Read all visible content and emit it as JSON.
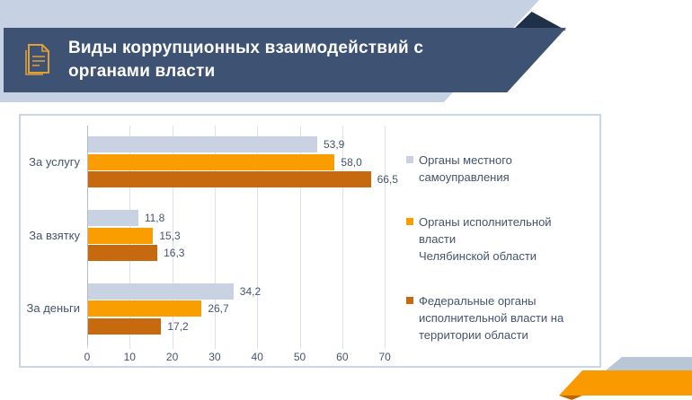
{
  "header": {
    "title_line1": "Виды коррупционных взаимодействий с",
    "title_line2": "органами власти"
  },
  "colors": {
    "banner": "#3e5273",
    "banner_fold": "#1e3149",
    "top_band": "#c6d2e4",
    "panel_border": "#c9d6ea",
    "icon_orange": "#dfa03c",
    "gridline": "#dce2ee",
    "axis_text": "#44546a",
    "bottom_band_gray": "#b9c6d8",
    "bottom_band_orange": "#f99b00",
    "bottom_band_tip": "#c06400"
  },
  "chart_data": {
    "type": "bar",
    "orientation": "horizontal",
    "categories": [
      "За услугу",
      "За взятку",
      "За деньги"
    ],
    "series": [
      {
        "name": "Органы местного самоуправления",
        "legend_lines": [
          "Органы местного",
          "самоуправления"
        ],
        "color": "#c8d2e3",
        "values": [
          53.9,
          11.8,
          34.2
        ]
      },
      {
        "name": "Органы исполнительной власти Челябинской области",
        "legend_lines": [
          "Органы исполнительной власти",
          "Челябинской области"
        ],
        "color": "#fa9d00",
        "values": [
          58.0,
          15.3,
          26.7
        ]
      },
      {
        "name": "Федеральные органы исполнительной власти на территории области",
        "legend_lines": [
          "Федеральные органы",
          "исполнительной власти на",
          "территории области"
        ],
        "color": "#c6690f",
        "values": [
          66.5,
          16.3,
          17.2
        ]
      }
    ],
    "x_ticks": [
      0,
      10,
      20,
      30,
      40,
      50,
      60,
      70
    ],
    "xlim": [
      0,
      74.4
    ],
    "grid": true,
    "legend_position": "right",
    "value_labels": true,
    "value_format": "comma_decimal"
  }
}
